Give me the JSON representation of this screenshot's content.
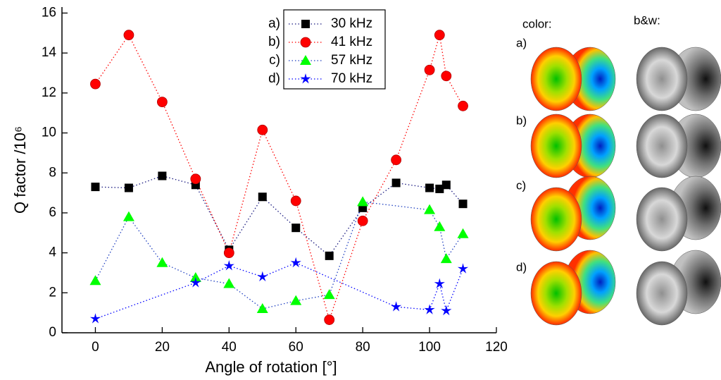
{
  "chart_data": {
    "type": "scatter",
    "xlabel": "Angle of rotation [°]",
    "ylabel": "Q factor  /10⁶",
    "xlim": [
      -10,
      120
    ],
    "ylim": [
      0,
      16.3
    ],
    "xticks": [
      0,
      20,
      40,
      60,
      80,
      100,
      120
    ],
    "yticks": [
      0,
      2,
      4,
      6,
      8,
      10,
      12,
      14,
      16
    ],
    "legend_prefixes": [
      "a)",
      "b)",
      "c)",
      "d)"
    ],
    "series": [
      {
        "name": "30 kHz",
        "color": "#000000",
        "line_color": "#1a1a80",
        "marker": "square",
        "x": [
          0,
          10,
          20,
          30,
          40,
          50,
          60,
          70,
          80,
          90,
          100,
          103,
          105,
          110
        ],
        "values": [
          7.3,
          7.25,
          7.85,
          7.4,
          4.15,
          6.8,
          5.25,
          3.85,
          6.25,
          7.5,
          7.25,
          7.2,
          7.4,
          6.45
        ]
      },
      {
        "name": "41 kHz",
        "color": "#ff0000",
        "line_color": "#ff0000",
        "marker": "circle",
        "x": [
          0,
          10,
          20,
          30,
          40,
          50,
          60,
          70,
          80,
          90,
          100,
          103,
          105,
          110
        ],
        "values": [
          12.45,
          14.9,
          11.55,
          7.7,
          4.0,
          10.15,
          6.6,
          0.65,
          5.6,
          8.65,
          13.15,
          14.9,
          12.85,
          11.35
        ]
      },
      {
        "name": "57 kHz",
        "color": "#00ff00",
        "line_color": "#2040c0",
        "marker": "triangle",
        "x": [
          0,
          10,
          20,
          30,
          40,
          50,
          60,
          70,
          80,
          100,
          103,
          105,
          110
        ],
        "values": [
          2.6,
          5.8,
          3.5,
          2.75,
          2.45,
          1.2,
          1.6,
          1.9,
          6.55,
          6.15,
          5.3,
          3.7,
          4.95
        ]
      },
      {
        "name": "70 kHz",
        "color": "#0000ff",
        "line_color": "#0000ff",
        "marker": "star",
        "x": [
          0,
          30,
          40,
          50,
          60,
          90,
          100,
          103,
          105,
          110
        ],
        "values": [
          0.7,
          2.5,
          3.35,
          2.8,
          3.5,
          1.3,
          1.15,
          2.45,
          1.1,
          3.2
        ]
      }
    ]
  },
  "side_panel": {
    "color_title": "color:",
    "bw_title": "b&w:",
    "row_labels": [
      "a)",
      "b)",
      "c)",
      "d)"
    ]
  }
}
